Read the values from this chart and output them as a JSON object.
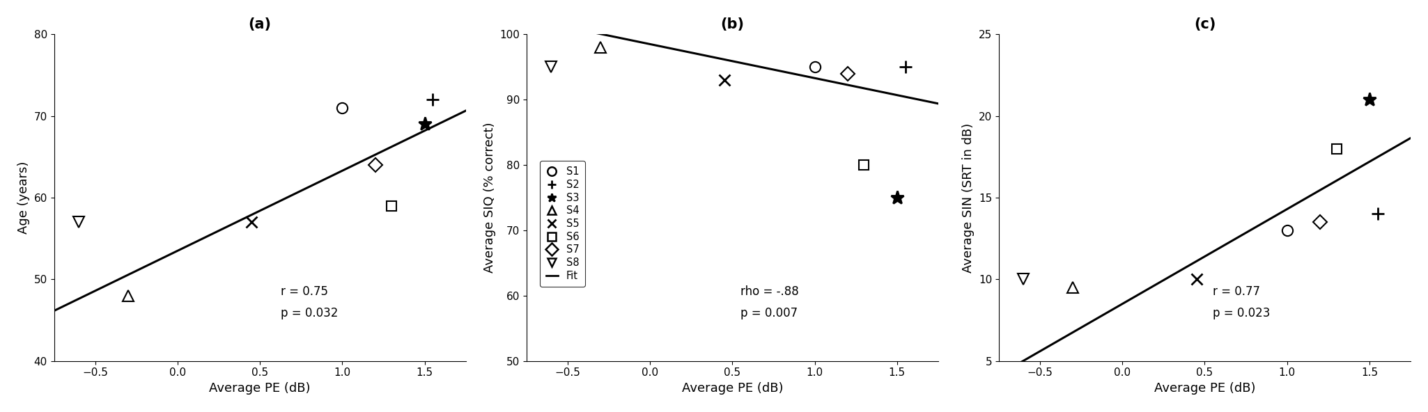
{
  "subjects": [
    "S1",
    "S2",
    "S3",
    "S4",
    "S5",
    "S6",
    "S7",
    "S8"
  ],
  "markers": [
    "o",
    "+",
    "*",
    "^",
    "x",
    "s",
    "D",
    "v"
  ],
  "markersize": [
    11,
    13,
    14,
    11,
    12,
    10,
    10,
    11
  ],
  "markeredgewidth": [
    1.5,
    2.0,
    2.0,
    1.5,
    2.0,
    1.5,
    1.5,
    1.5
  ],
  "pe": [
    1.0,
    1.55,
    1.5,
    -0.3,
    0.45,
    1.3,
    1.2,
    -0.6
  ],
  "age": [
    71,
    72,
    69,
    48,
    57,
    59,
    64,
    57
  ],
  "siq": [
    95,
    95,
    75,
    98,
    93,
    80,
    94,
    95
  ],
  "sin": [
    13,
    14,
    21,
    9.5,
    10,
    18,
    13.5,
    10
  ],
  "panel_labels": [
    "(a)",
    "(b)",
    "(c)"
  ],
  "xlim": [
    -0.75,
    1.75
  ],
  "xticks": [
    -0.5,
    0.0,
    0.5,
    1.0,
    1.5
  ],
  "xlabel": "Average PE (dB)",
  "ylim_a": [
    40,
    80
  ],
  "yticks_a": [
    40,
    50,
    60,
    70,
    80
  ],
  "ylabel_a": "Age (years)",
  "ylim_b": [
    50,
    100
  ],
  "yticks_b": [
    50,
    60,
    70,
    80,
    90,
    100
  ],
  "ylabel_b": "Average SIQ (% correct)",
  "ylim_c": [
    5,
    25
  ],
  "yticks_c": [
    5,
    10,
    15,
    20,
    25
  ],
  "ylabel_c": "Average SIN (SRT in dB)",
  "fit_a": [
    53.5,
    9.8
  ],
  "fit_b": [
    98.5,
    -5.2
  ],
  "fit_c": [
    8.5,
    5.8
  ],
  "stats_a": "r = 0.75\np = 0.032",
  "stats_b": "rho = -.88\np = 0.007",
  "stats_c": "r = 0.77\np = 0.023",
  "legend_labels": [
    "S1",
    "S2",
    "S3",
    "S4",
    "S5",
    "S6",
    "S7",
    "S8",
    "Fit"
  ],
  "background_color": "#ffffff",
  "line_color": "#000000",
  "marker_color": "#000000"
}
